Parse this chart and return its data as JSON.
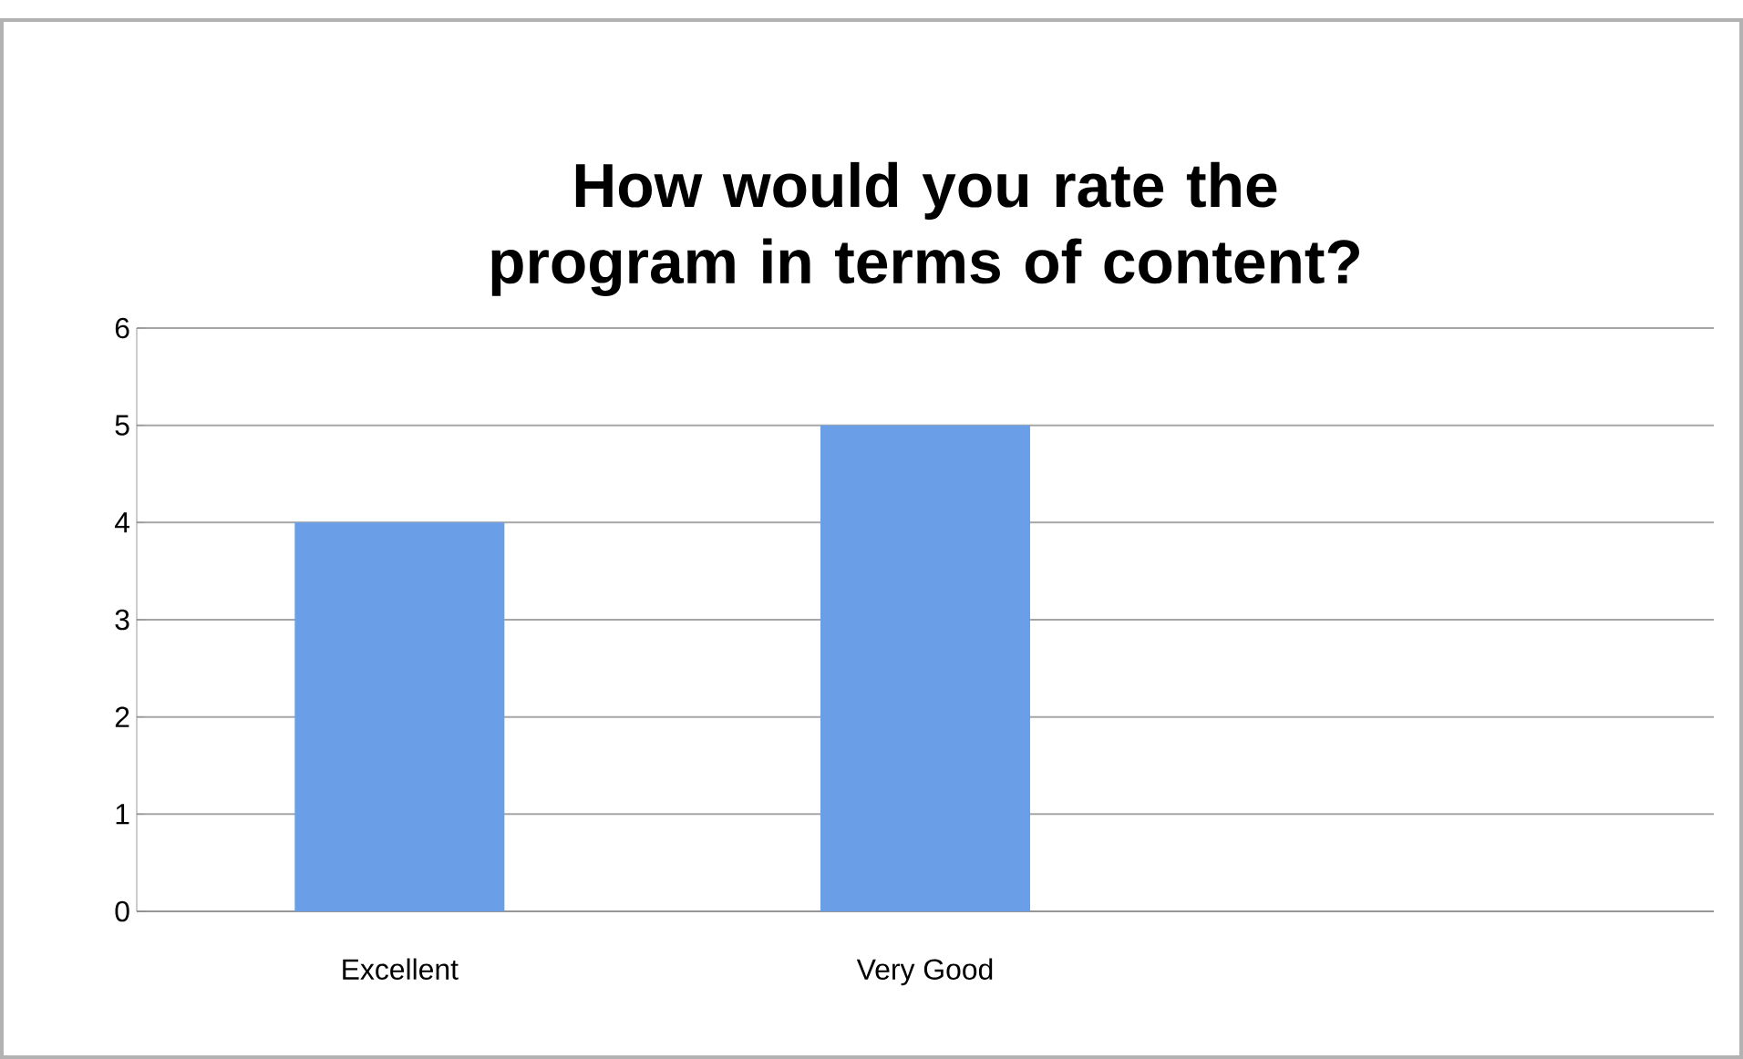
{
  "chart_data": {
    "type": "bar",
    "title": "How would you rate the program in terms of content?",
    "categories": [
      "Excellent",
      "Very Good",
      null
    ],
    "values": [
      4,
      5,
      null
    ],
    "color": "#6a9ee6",
    "ylim": [
      0,
      6
    ],
    "yticks": [
      0,
      1,
      2,
      3,
      4,
      5,
      6
    ],
    "grid": "y"
  }
}
